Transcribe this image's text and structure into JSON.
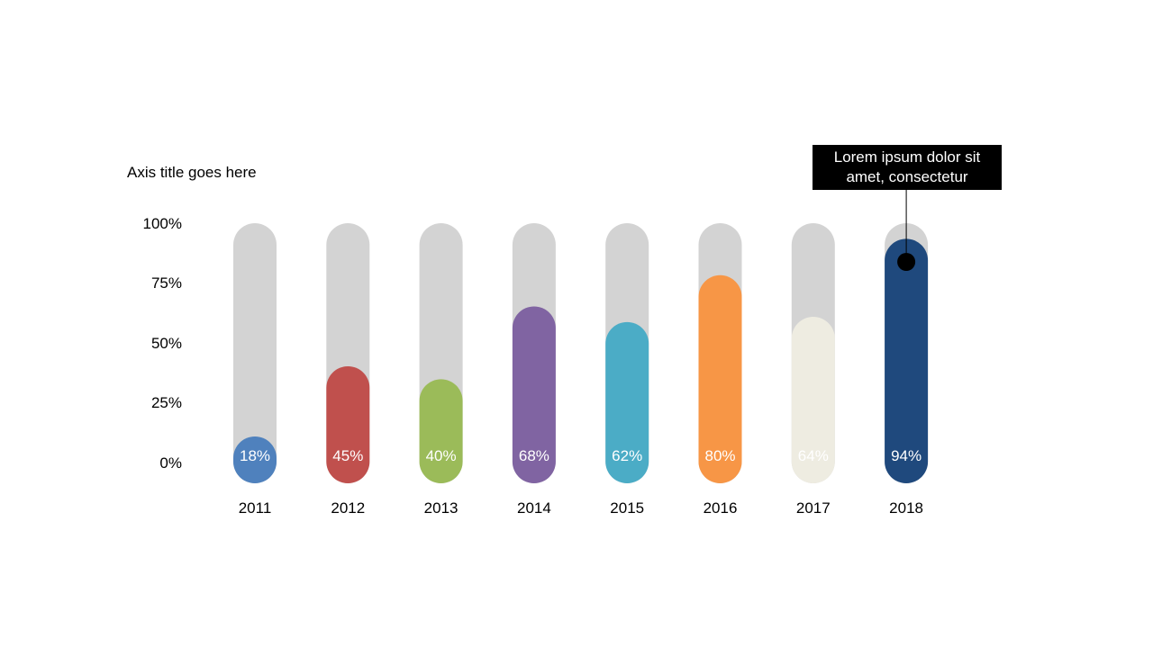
{
  "chart_data": {
    "type": "bar",
    "ylabel": "Axis title goes here",
    "ylim": [
      0,
      100
    ],
    "yticks": [
      "100%",
      "75%",
      "50%",
      "25%",
      "0%"
    ],
    "ytick_values": [
      100,
      75,
      50,
      25,
      0
    ],
    "categories": [
      "2011",
      "2012",
      "2013",
      "2014",
      "2015",
      "2016",
      "2017",
      "2018"
    ],
    "values": [
      18,
      45,
      40,
      68,
      62,
      80,
      64,
      94
    ],
    "value_labels": [
      "18%",
      "45%",
      "40%",
      "68%",
      "62%",
      "80%",
      "64%",
      "94%"
    ],
    "colors": [
      "#4f81bd",
      "#c0504d",
      "#9bbb59",
      "#8064a2",
      "#4bacc6",
      "#f79646",
      "#eeece1",
      "#1f497d"
    ],
    "track_color": "#d3d3d3",
    "grid": false,
    "legend": "none",
    "annotation": {
      "category": "2018",
      "text": "Lorem ipsum dolor sit amet, consectetur"
    }
  }
}
